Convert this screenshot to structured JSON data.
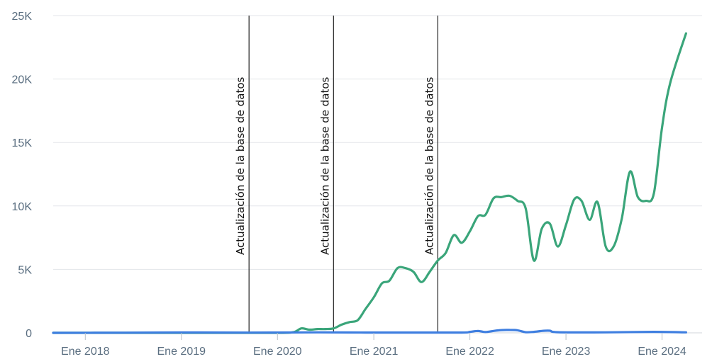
{
  "chart_data": {
    "type": "line",
    "title": "",
    "xlabel": "",
    "ylabel": "",
    "ylim": [
      0,
      25000
    ],
    "xlim": [
      "2017-09-01",
      "2024-06-01"
    ],
    "grid": "horizontal",
    "y_ticks": [
      {
        "value": 0,
        "label": "0"
      },
      {
        "value": 5000,
        "label": "5K"
      },
      {
        "value": 10000,
        "label": "10K"
      },
      {
        "value": 15000,
        "label": "15K"
      },
      {
        "value": 20000,
        "label": "20K"
      },
      {
        "value": 25000,
        "label": "25K"
      }
    ],
    "x_ticks": [
      {
        "value": "2018-01-01",
        "label": "Ene 2018"
      },
      {
        "value": "2019-01-01",
        "label": "Ene 2019"
      },
      {
        "value": "2020-01-01",
        "label": "Ene 2020"
      },
      {
        "value": "2021-01-01",
        "label": "Ene 2021"
      },
      {
        "value": "2022-01-01",
        "label": "Ene 2022"
      },
      {
        "value": "2023-01-01",
        "label": "Ene 2023"
      },
      {
        "value": "2024-01-01",
        "label": "Ene 2024"
      }
    ],
    "annotations": [
      {
        "x": "2019-09-15",
        "label": "Actualización de la base de datos"
      },
      {
        "x": "2020-08-01",
        "label": "Actualización de la base de datos"
      },
      {
        "x": "2021-09-01",
        "label": "Actualización de la base de datos"
      }
    ],
    "colors": {
      "series_a": "#3aa57a",
      "series_b": "#3e7ee0",
      "grid": "#e3e6ea",
      "annotation": "#222222",
      "axis_text": "#5a6e80"
    },
    "series": [
      {
        "color": "#3aa57a",
        "points": [
          [
            "2017-09-01",
            0
          ],
          [
            "2018-01-01",
            0
          ],
          [
            "2018-06-01",
            0
          ],
          [
            "2019-01-01",
            0
          ],
          [
            "2019-06-01",
            0
          ],
          [
            "2020-01-01",
            0
          ],
          [
            "2020-03-01",
            50
          ],
          [
            "2020-04-01",
            350
          ],
          [
            "2020-05-01",
            250
          ],
          [
            "2020-06-01",
            300
          ],
          [
            "2020-07-01",
            300
          ],
          [
            "2020-08-01",
            350
          ],
          [
            "2020-09-01",
            650
          ],
          [
            "2020-10-01",
            850
          ],
          [
            "2020-11-01",
            1000
          ],
          [
            "2020-12-01",
            1900
          ],
          [
            "2021-01-01",
            2800
          ],
          [
            "2021-02-01",
            3900
          ],
          [
            "2021-03-01",
            4100
          ],
          [
            "2021-04-01",
            5100
          ],
          [
            "2021-05-01",
            5100
          ],
          [
            "2021-06-01",
            4800
          ],
          [
            "2021-07-01",
            4000
          ],
          [
            "2021-08-01",
            4800
          ],
          [
            "2021-09-01",
            5700
          ],
          [
            "2021-10-01",
            6300
          ],
          [
            "2021-11-01",
            7700
          ],
          [
            "2021-12-01",
            7100
          ],
          [
            "2022-01-01",
            8000
          ],
          [
            "2022-02-01",
            9200
          ],
          [
            "2022-03-01",
            9300
          ],
          [
            "2022-04-01",
            10600
          ],
          [
            "2022-05-01",
            10700
          ],
          [
            "2022-06-01",
            10800
          ],
          [
            "2022-07-01",
            10400
          ],
          [
            "2022-08-01",
            9800
          ],
          [
            "2022-09-01",
            5700
          ],
          [
            "2022-10-01",
            8200
          ],
          [
            "2022-11-01",
            8600
          ],
          [
            "2022-12-01",
            6800
          ],
          [
            "2023-01-01",
            8500
          ],
          [
            "2023-02-01",
            10500
          ],
          [
            "2023-03-01",
            10400
          ],
          [
            "2023-04-01",
            8900
          ],
          [
            "2023-05-01",
            10300
          ],
          [
            "2023-06-01",
            6800
          ],
          [
            "2023-07-01",
            6800
          ],
          [
            "2023-08-01",
            9000
          ],
          [
            "2023-09-01",
            12700
          ],
          [
            "2023-10-01",
            10700
          ],
          [
            "2023-11-01",
            10400
          ],
          [
            "2023-12-01",
            11000
          ],
          [
            "2024-01-01",
            16200
          ],
          [
            "2024-02-01",
            19700
          ],
          [
            "2024-04-01",
            23600
          ]
        ]
      },
      {
        "color": "#3e7ee0",
        "points": [
          [
            "2017-09-01",
            0
          ],
          [
            "2018-06-01",
            10
          ],
          [
            "2019-01-01",
            30
          ],
          [
            "2019-06-01",
            20
          ],
          [
            "2020-01-01",
            20
          ],
          [
            "2020-06-01",
            40
          ],
          [
            "2020-12-01",
            20
          ],
          [
            "2021-06-01",
            20
          ],
          [
            "2021-12-01",
            20
          ],
          [
            "2022-01-01",
            80
          ],
          [
            "2022-02-01",
            150
          ],
          [
            "2022-03-01",
            60
          ],
          [
            "2022-04-01",
            150
          ],
          [
            "2022-05-01",
            220
          ],
          [
            "2022-06-01",
            230
          ],
          [
            "2022-07-01",
            200
          ],
          [
            "2022-08-01",
            50
          ],
          [
            "2022-09-01",
            80
          ],
          [
            "2022-10-01",
            150
          ],
          [
            "2022-11-01",
            170
          ],
          [
            "2022-12-01",
            50
          ],
          [
            "2023-06-01",
            40
          ],
          [
            "2023-12-01",
            80
          ],
          [
            "2024-04-01",
            40
          ]
        ]
      }
    ]
  }
}
